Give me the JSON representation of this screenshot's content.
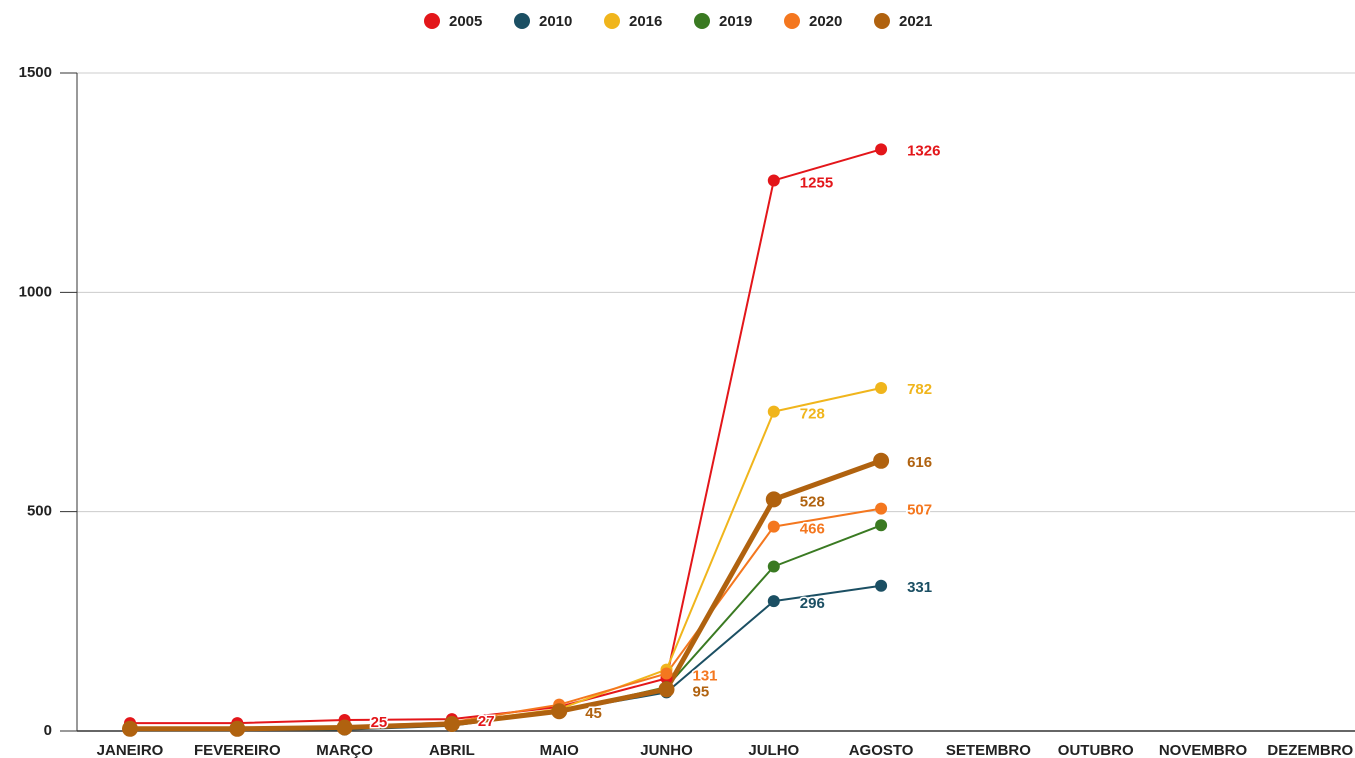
{
  "chart_data": {
    "type": "line",
    "categories": [
      "JANEIRO",
      "FEVEREIRO",
      "MARÇO",
      "ABRIL",
      "MAIO",
      "JUNHO",
      "JULHO",
      "AGOSTO",
      "SETEMBRO",
      "OUTUBRO",
      "NOVEMBRO",
      "DEZEMBRO"
    ],
    "series": [
      {
        "name": "2005",
        "color": "#e3161a",
        "values": [
          18,
          18,
          25,
          27,
          55,
          120,
          1255,
          1326,
          null,
          null,
          null,
          null
        ],
        "value_labels": [
          null,
          null,
          "25",
          "27",
          null,
          null,
          "1255",
          "1326",
          null,
          null,
          null,
          null
        ]
      },
      {
        "name": "2010",
        "color": "#1b4f63",
        "values": [
          2,
          2,
          3,
          12,
          45,
          88,
          296,
          331,
          null,
          null,
          null,
          null
        ],
        "value_labels": [
          null,
          null,
          null,
          null,
          null,
          null,
          "296",
          "331",
          null,
          null,
          null,
          null
        ]
      },
      {
        "name": "2016",
        "color": "#f0b51c",
        "values": [
          5,
          5,
          8,
          18,
          50,
          140,
          728,
          782,
          null,
          null,
          null,
          null
        ],
        "value_labels": [
          null,
          null,
          null,
          null,
          null,
          null,
          "728",
          "782",
          null,
          null,
          null,
          null
        ]
      },
      {
        "name": "2019",
        "color": "#3a7a22",
        "values": [
          3,
          3,
          5,
          15,
          45,
          100,
          375,
          469,
          null,
          null,
          null,
          null
        ]
      },
      {
        "name": "2020",
        "color": "#f4771f",
        "values": [
          6,
          6,
          10,
          20,
          60,
          131,
          466,
          507,
          null,
          null,
          null,
          null
        ],
        "value_labels": [
          null,
          null,
          null,
          null,
          null,
          "131",
          "466",
          "507",
          null,
          null,
          null,
          null
        ]
      },
      {
        "name": "2021",
        "color": "#b0620f",
        "values": [
          5,
          5,
          8,
          16,
          45,
          95,
          528,
          616,
          null,
          null,
          null,
          null
        ],
        "value_labels": [
          null,
          null,
          null,
          null,
          "45",
          "95",
          "528",
          "616",
          null,
          null,
          null,
          null
        ]
      }
    ],
    "ylim": [
      0,
      1500
    ],
    "yticks": [
      0,
      500,
      1000,
      1500
    ],
    "grid": true,
    "legend": "top"
  }
}
